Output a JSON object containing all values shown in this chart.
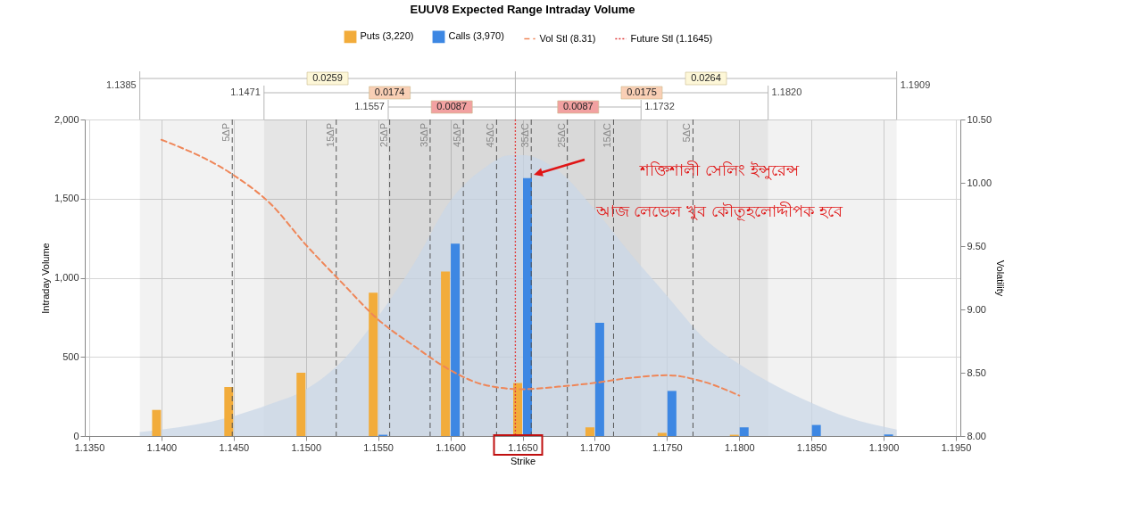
{
  "chart_data": {
    "type": "bar",
    "title": "EUUV8 Expected Range Intraday Volume",
    "xlabel": "Strike",
    "ylabel": "Intraday Volume",
    "y2label": "Volatility",
    "x": [
      1.14,
      1.145,
      1.15,
      1.155,
      1.16,
      1.165,
      1.17,
      1.175,
      1.18,
      1.185,
      1.19
    ],
    "series": [
      {
        "type": "area",
        "color": "#c9d7e7",
        "x": [
          1.1385,
          1.14,
          1.145,
          1.1475,
          1.15,
          1.1525,
          1.155,
          1.1575,
          1.16,
          1.1625,
          1.164,
          1.165,
          1.1675,
          1.17,
          1.1725,
          1.175,
          1.1775,
          1.18,
          1.185,
          1.1875,
          1.1909
        ],
        "values": [
          26,
          41,
          126,
          201,
          295,
          473,
          755,
          1093,
          1487,
          1703,
          1773,
          1775,
          1675,
          1431,
          1149,
          886,
          623,
          455,
          210,
          118,
          41
        ]
      },
      {
        "name": "Puts (3,220)",
        "color": "#f2ac3b",
        "values": [
          165,
          310,
          400,
          905,
          1040,
          335,
          55,
          20,
          8,
          null,
          null
        ]
      },
      {
        "name": "Calls (3,970)",
        "color": "#3d87e3",
        "values": [
          null,
          null,
          null,
          8,
          1215,
          1630,
          715,
          285,
          55,
          70,
          10
        ]
      },
      {
        "name": "Vol Stl (8.31)",
        "type": "line",
        "axis": "y2",
        "color": "#ef8658",
        "line_style": "dashed",
        "x": [
          1.14,
          1.145,
          1.1475,
          1.15,
          1.1525,
          1.155,
          1.1575,
          1.16,
          1.1625,
          1.165,
          1.1675,
          1.17,
          1.1725,
          1.175,
          1.1775,
          1.18
        ],
        "values": [
          10.34,
          10.06,
          9.84,
          9.51,
          9.21,
          8.92,
          8.71,
          8.52,
          8.4,
          8.37,
          8.39,
          8.42,
          8.46,
          8.48,
          8.43,
          8.32
        ]
      }
    ],
    "xlim": [
      1.135,
      1.195
    ],
    "xticks": [
      {
        "value": 1.135,
        "label": "1.1350"
      },
      {
        "value": 1.14,
        "label": "1.1400"
      },
      {
        "value": 1.145,
        "label": "1.1450"
      },
      {
        "value": 1.15,
        "label": "1.1500"
      },
      {
        "value": 1.155,
        "label": "1.1550"
      },
      {
        "value": 1.16,
        "label": "1.1600"
      },
      {
        "value": 1.165,
        "label": "1.1650"
      },
      {
        "value": 1.17,
        "label": "1.1700"
      },
      {
        "value": 1.175,
        "label": "1.1750"
      },
      {
        "value": 1.18,
        "label": "1.1800"
      },
      {
        "value": 1.185,
        "label": "1.1850"
      },
      {
        "value": 1.19,
        "label": "1.1900"
      },
      {
        "value": 1.195,
        "label": "1.1950"
      }
    ],
    "ylim": [
      0,
      2000
    ],
    "yticks": [
      0,
      500,
      {
        "value": 1000,
        "label": "1,000"
      },
      {
        "value": 1500,
        "label": "1,500"
      },
      {
        "value": 2000,
        "label": "2,000"
      }
    ],
    "y2lim": [
      8,
      10.5
    ],
    "y2ticks": [
      {
        "value": 8,
        "label": "8.00"
      },
      {
        "value": 8.5,
        "label": "8.50"
      },
      {
        "value": 9,
        "label": "9.00"
      },
      {
        "value": 9.5,
        "label": "9.50"
      },
      {
        "value": 10,
        "label": "10.00"
      },
      {
        "value": 10.5,
        "label": "10.50"
      }
    ],
    "grid": true,
    "legend": "top",
    "ref_lines": [
      {
        "axis": "x",
        "value": 1.1449,
        "label": "5ΔP",
        "line_style": "dashed"
      },
      {
        "axis": "x",
        "value": 1.1521,
        "label": "15ΔP",
        "line_style": "dashed"
      },
      {
        "axis": "x",
        "value": 1.1558,
        "label": "25ΔP",
        "line_style": "dashed"
      },
      {
        "axis": "x",
        "value": 1.1586,
        "label": "35ΔP",
        "line_style": "dashed"
      },
      {
        "axis": "x",
        "value": 1.1609,
        "label": "45ΔP",
        "line_style": "dashed"
      },
      {
        "axis": "x",
        "value": 1.1632,
        "label": "45ΔC",
        "line_style": "dashed"
      },
      {
        "axis": "x",
        "value": 1.1656,
        "label": "35ΔC",
        "line_style": "dashed"
      },
      {
        "axis": "x",
        "value": 1.1681,
        "label": "25ΔC",
        "line_style": "dashed"
      },
      {
        "axis": "x",
        "value": 1.1713,
        "label": "15ΔC",
        "line_style": "dashed"
      },
      {
        "axis": "x",
        "value": 1.1768,
        "label": "5ΔC",
        "line_style": "dashed"
      },
      {
        "axis": "x",
        "value": 1.1645,
        "label": "Future Stl (1.1645)",
        "color": "#e03c3c",
        "line_style": "dotted"
      }
    ],
    "bands": [
      {
        "axis": "x",
        "from": 1.1385,
        "to": 1.1645
      },
      {
        "axis": "x",
        "from": 1.1645,
        "to": 1.1909
      },
      {
        "axis": "x",
        "from": 1.1471,
        "to": 1.1645
      },
      {
        "axis": "x",
        "from": 1.1645,
        "to": 1.182
      },
      {
        "axis": "x",
        "from": 1.1557,
        "to": 1.1645
      },
      {
        "axis": "x",
        "from": 1.1645,
        "to": 1.1732
      }
    ],
    "annotations": [
      "0.0259",
      "0.0264",
      "0.0174",
      "0.0175",
      "0.0087",
      "0.0087",
      "1.1385",
      "1.1909",
      "1.1471",
      "1.1820",
      "1.1557",
      "1.1732",
      "শক্তিশালী সেলিং ইন্সুরেন্স",
      "আজ লেভেল খুব কৌতূহলোদ্দীপক হবে"
    ]
  }
}
